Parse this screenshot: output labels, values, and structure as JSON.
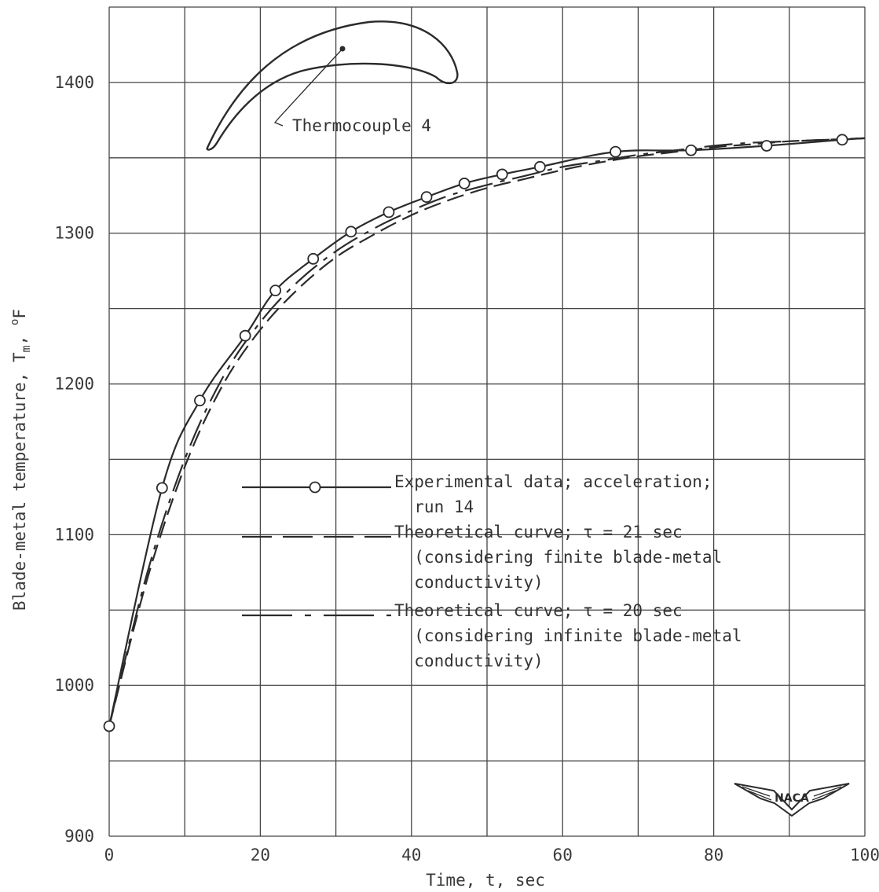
{
  "chart_data": {
    "type": "line",
    "xlabel": "Time, t, sec",
    "ylabel": "Blade-metal temperature, T",
    "ylabel_sub": "m",
    "ylabel_tail": ", ",
    "ylabel_sup": "o",
    "ylabel_unit": "F",
    "xlim": [
      0,
      100
    ],
    "ylim": [
      900,
      1450
    ],
    "x_ticks": [
      "0",
      "20",
      "40",
      "60",
      "80",
      "100"
    ],
    "y_ticks": [
      "900",
      "1000",
      "1100",
      "1200",
      "1300",
      "1400"
    ],
    "grid": true,
    "inset_label": "Thermocouple 4",
    "logo_text": "NACA",
    "series": [
      {
        "name": "Experimental data; acceleration; run 14",
        "style": "solid-with-circles",
        "points": [
          [
            0,
            973
          ],
          [
            7,
            1131
          ],
          [
            12,
            1189
          ],
          [
            18,
            1232
          ],
          [
            22,
            1262
          ],
          [
            27,
            1283
          ],
          [
            32,
            1301
          ],
          [
            37,
            1314
          ],
          [
            42,
            1324
          ],
          [
            47,
            1333
          ],
          [
            52,
            1339
          ],
          [
            57,
            1344
          ],
          [
            67,
            1354
          ],
          [
            77,
            1355
          ],
          [
            87,
            1358
          ],
          [
            97,
            1362
          ]
        ]
      },
      {
        "name": "Theoretical curve; τ = 21 sec (considering finite blade-metal conductivity)",
        "style": "dashed",
        "points": [
          [
            0,
            973
          ],
          [
            5,
            1070
          ],
          [
            10,
            1145
          ],
          [
            15,
            1199
          ],
          [
            20,
            1236
          ],
          [
            25,
            1263
          ],
          [
            30,
            1284
          ],
          [
            35,
            1299
          ],
          [
            40,
            1312
          ],
          [
            45,
            1322
          ],
          [
            50,
            1330
          ],
          [
            55,
            1336
          ],
          [
            60,
            1342
          ],
          [
            65,
            1347
          ],
          [
            70,
            1351
          ],
          [
            75,
            1354
          ],
          [
            80,
            1357
          ],
          [
            85,
            1359
          ],
          [
            90,
            1361
          ],
          [
            95,
            1362
          ],
          [
            100,
            1363
          ]
        ]
      },
      {
        "name": "Theoretical curve; τ = 20 sec (considering infinite blade-metal conductivity)",
        "style": "dash-dot",
        "points": [
          [
            0,
            973
          ],
          [
            5,
            1074
          ],
          [
            10,
            1150
          ],
          [
            15,
            1204
          ],
          [
            20,
            1241
          ],
          [
            25,
            1268
          ],
          [
            30,
            1288
          ],
          [
            35,
            1303
          ],
          [
            40,
            1315
          ],
          [
            45,
            1325
          ],
          [
            50,
            1332
          ],
          [
            55,
            1338
          ],
          [
            60,
            1344
          ],
          [
            65,
            1348
          ],
          [
            70,
            1352
          ],
          [
            75,
            1355
          ],
          [
            80,
            1358
          ],
          [
            85,
            1360
          ],
          [
            90,
            1361
          ],
          [
            95,
            1362
          ],
          [
            100,
            1363
          ]
        ]
      }
    ],
    "legend": [
      {
        "lines": [
          "Experimental data; acceleration;",
          "  run 14"
        ],
        "style": "solid-with-circles"
      },
      {
        "lines": [
          "Theoretical curve; τ = 21 sec",
          "  (considering finite blade-metal",
          "  conductivity)"
        ],
        "style": "dashed"
      },
      {
        "lines": [
          "Theoretical curve; τ = 20 sec",
          "  (considering infinite blade-metal",
          "  conductivity)"
        ],
        "style": "dash-dot"
      }
    ]
  }
}
